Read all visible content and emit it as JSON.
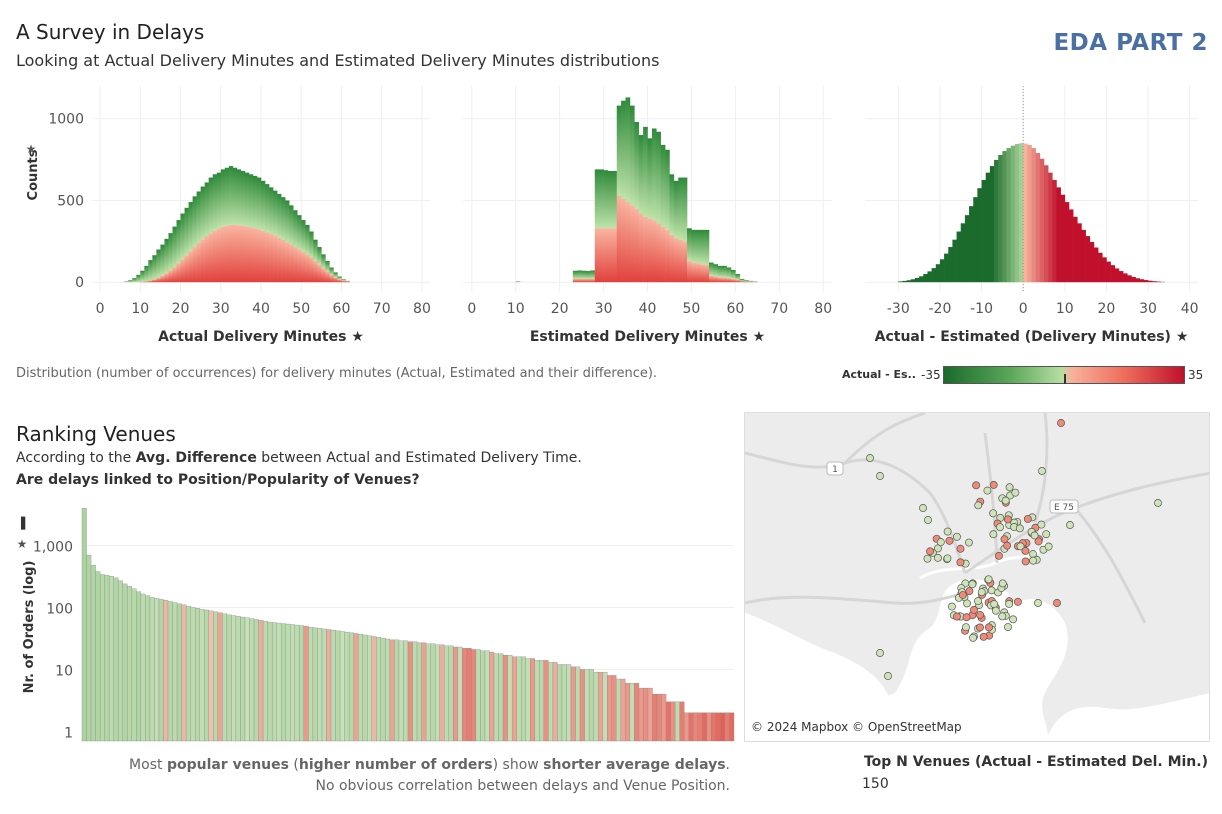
{
  "header": {
    "title": "A Survey in Delays",
    "subtitle": "Looking at Actual Delivery Minutes and Estimated Delivery Minutes distributions",
    "badge": "EDA PART 2"
  },
  "caption_distributions": "Distribution (number of occurrences) for delivery minutes (Actual, Estimated and their difference).",
  "legend": {
    "label": "Actual - Es..",
    "min": "-35",
    "max": "35",
    "colors": [
      "#1a6b2c",
      "#b7dea2",
      "#f7b29c",
      "#c0102c"
    ]
  },
  "ranking": {
    "title": "Ranking Venues",
    "line1_pre": "According to the ",
    "line1_bold": "Avg. Difference",
    "line1_post": " between Actual and Estimated Delivery Time.",
    "line2": "Are delays linked to Position/Popularity of Venues?",
    "caption1_a": "Most ",
    "caption1_b": "popular venues",
    "caption1_c": " (",
    "caption1_d": "higher number of orders",
    "caption1_e": ")  show ",
    "caption1_f": "shorter average delays",
    "caption1_g": ".",
    "caption2": "No obvious correlation between delays and Venue Position."
  },
  "map": {
    "attribution": "© 2024 Mapbox © OpenStreetMap",
    "title": "Top N Venues (Actual - Estimated Del. Min.)",
    "value": "150",
    "road_labels": [
      "1",
      "E 75"
    ]
  },
  "chart_data": [
    {
      "type": "bar",
      "xlabel": "Actual Delivery Minutes",
      "ylabel": "Counts",
      "xlim": [
        -2,
        82
      ],
      "ylim": [
        -60,
        1200
      ],
      "xticks": [
        "0",
        "10",
        "20",
        "30",
        "40",
        "50",
        "60",
        "70",
        "80"
      ],
      "yticks": [
        "0",
        "500",
        "1000"
      ],
      "bin_start": 6,
      "bin_width": 1,
      "values": [
        5,
        12,
        25,
        45,
        70,
        100,
        135,
        165,
        200,
        230,
        265,
        300,
        340,
        380,
        420,
        455,
        490,
        525,
        555,
        585,
        610,
        640,
        660,
        670,
        690,
        700,
        710,
        700,
        690,
        680,
        670,
        660,
        650,
        640,
        620,
        600,
        580,
        560,
        540,
        520,
        500,
        470,
        440,
        410,
        380,
        350,
        310,
        260,
        215,
        170,
        130,
        90,
        60,
        35,
        18,
        8
      ],
      "red_values": [
        0,
        0,
        0,
        0,
        2,
        5,
        10,
        18,
        28,
        40,
        55,
        72,
        92,
        115,
        140,
        165,
        190,
        215,
        240,
        262,
        282,
        300,
        315,
        328,
        338,
        345,
        350,
        350,
        348,
        345,
        340,
        335,
        330,
        322,
        315,
        305,
        295,
        285,
        272,
        258,
        245,
        230,
        215,
        200,
        185,
        170,
        152,
        130,
        108,
        86,
        66,
        45,
        30,
        18,
        9,
        4
      ]
    },
    {
      "type": "bar",
      "xlabel": "Estimated Delivery Minutes",
      "xlim": [
        -2,
        82
      ],
      "ylim": [
        -60,
        1200
      ],
      "xticks": [
        "0",
        "10",
        "20",
        "30",
        "40",
        "50",
        "60",
        "70",
        "80"
      ],
      "yticks": [
        "0",
        "500",
        "1000"
      ],
      "bin_start": 10,
      "bin_width": 1,
      "values": [
        5,
        0,
        0,
        0,
        0,
        0,
        0,
        0,
        0,
        0,
        0,
        0,
        0,
        70,
        72,
        70,
        68,
        72,
        690,
        690,
        685,
        680,
        680,
        1080,
        1110,
        1130,
        1080,
        980,
        900,
        950,
        880,
        940,
        920,
        840,
        810,
        660,
        620,
        640,
        640,
        330,
        320,
        320,
        320,
        320,
        120,
        110,
        100,
        100,
        90,
        75,
        50,
        20,
        12,
        8,
        4
      ],
      "red_values": [
        0,
        0,
        0,
        0,
        0,
        0,
        0,
        0,
        0,
        0,
        0,
        0,
        0,
        20,
        20,
        20,
        20,
        20,
        330,
        330,
        330,
        330,
        330,
        530,
        510,
        490,
        470,
        450,
        420,
        400,
        390,
        380,
        360,
        340,
        320,
        290,
        270,
        260,
        250,
        130,
        120,
        115,
        110,
        105,
        40,
        35,
        30,
        28,
        25,
        20,
        14,
        7,
        4,
        2,
        1
      ]
    },
    {
      "type": "bar",
      "xlabel": "Actual - Estimated (Delivery Minutes)",
      "xlim": [
        -38,
        42
      ],
      "ylim": [
        -60,
        1200
      ],
      "xticks": [
        "-30",
        "-20",
        "-10",
        "0",
        "10",
        "20",
        "30",
        "40"
      ],
      "yticks": [
        "0",
        "500",
        "1000"
      ],
      "bin_start": -30,
      "bin_width": 1,
      "values": [
        5,
        8,
        12,
        18,
        26,
        36,
        50,
        66,
        86,
        110,
        140,
        175,
        215,
        260,
        310,
        360,
        410,
        465,
        520,
        575,
        625,
        670,
        710,
        748,
        778,
        802,
        820,
        835,
        845,
        850,
        848,
        840,
        820,
        790,
        755,
        715,
        670,
        625,
        580,
        535,
        490,
        445,
        400,
        360,
        320,
        282,
        246,
        212,
        180,
        152,
        126,
        104,
        84,
        68,
        54,
        42,
        32,
        24,
        18,
        13,
        9,
        6,
        4,
        2
      ]
    },
    {
      "type": "bar",
      "ylabel": "Nr. of Orders (log)",
      "scale": "log",
      "ylim": [
        1,
        3000
      ],
      "yticks": [
        "1",
        "10",
        "100",
        "1,000"
      ],
      "values": [
        4000,
        700,
        480,
        380,
        340,
        330,
        320,
        300,
        270,
        240,
        220,
        200,
        180,
        165,
        155,
        145,
        140,
        135,
        130,
        125,
        120,
        115,
        110,
        105,
        100,
        97,
        94,
        91,
        88,
        85,
        82,
        79,
        76,
        74,
        72,
        70,
        68,
        66,
        64,
        62,
        60,
        58,
        57,
        56,
        55,
        54,
        53,
        52,
        51,
        50,
        48,
        47,
        46,
        45,
        44,
        43,
        42,
        41,
        40,
        39,
        38,
        37,
        36,
        35,
        34,
        33,
        32,
        31,
        30,
        30,
        29,
        29,
        28,
        28,
        27,
        27,
        26,
        26,
        25,
        25,
        24,
        24,
        23,
        23,
        22,
        22,
        21,
        21,
        20,
        20,
        19,
        18,
        18,
        17,
        17,
        16,
        16,
        16,
        15,
        15,
        14,
        14,
        14,
        13,
        13,
        12,
        12,
        12,
        11,
        11,
        10,
        10,
        10,
        9,
        9,
        9,
        8,
        8,
        7,
        7,
        6,
        6,
        6,
        5,
        5,
        5,
        4,
        4,
        4,
        3,
        3,
        3,
        3,
        2,
        2,
        2,
        2,
        2,
        2,
        2,
        2,
        2,
        2,
        2
      ],
      "delays": [
        -6,
        -5,
        -5,
        -5,
        -4,
        -5,
        -3,
        -5,
        -4,
        -5,
        -4,
        -4,
        -5,
        -3,
        -4,
        -3,
        -2,
        -5,
        1,
        -4,
        -3,
        -5,
        1,
        -4,
        -3,
        -4,
        -2,
        -4,
        0,
        -4,
        3,
        -3,
        -4,
        -2,
        -3,
        -4,
        -1,
        -3,
        -4,
        2,
        -3,
        -4,
        -3,
        -2,
        -4,
        -3,
        -2,
        -3,
        -4,
        4,
        -3,
        -4,
        -2,
        -3,
        2,
        -3,
        -4,
        -1,
        -3,
        -4,
        3,
        -3,
        -4,
        -2,
        1,
        -3,
        -4,
        -3,
        3,
        -4,
        -2,
        -3,
        5,
        -3,
        -4,
        3,
        -3,
        -4,
        -2,
        2,
        -3,
        -4,
        4,
        -2,
        6,
        7,
        6,
        -3,
        -4,
        -2,
        3,
        -3,
        -4,
        5,
        -2,
        3,
        -3,
        -4,
        -2,
        4,
        -3,
        -4,
        5,
        -3,
        2,
        -4,
        -3,
        -2,
        4,
        -3,
        5,
        -2,
        -4,
        -3,
        3,
        -2,
        4,
        5,
        -3,
        3,
        4,
        -2,
        6,
        4,
        5,
        3,
        7,
        6,
        4,
        8,
        5,
        -3,
        7,
        4,
        8,
        6,
        7,
        9,
        5,
        8,
        9,
        10,
        7,
        9
      ],
      "caption": "Most popular venues (higher number of orders)  show shorter average delays."
    }
  ]
}
